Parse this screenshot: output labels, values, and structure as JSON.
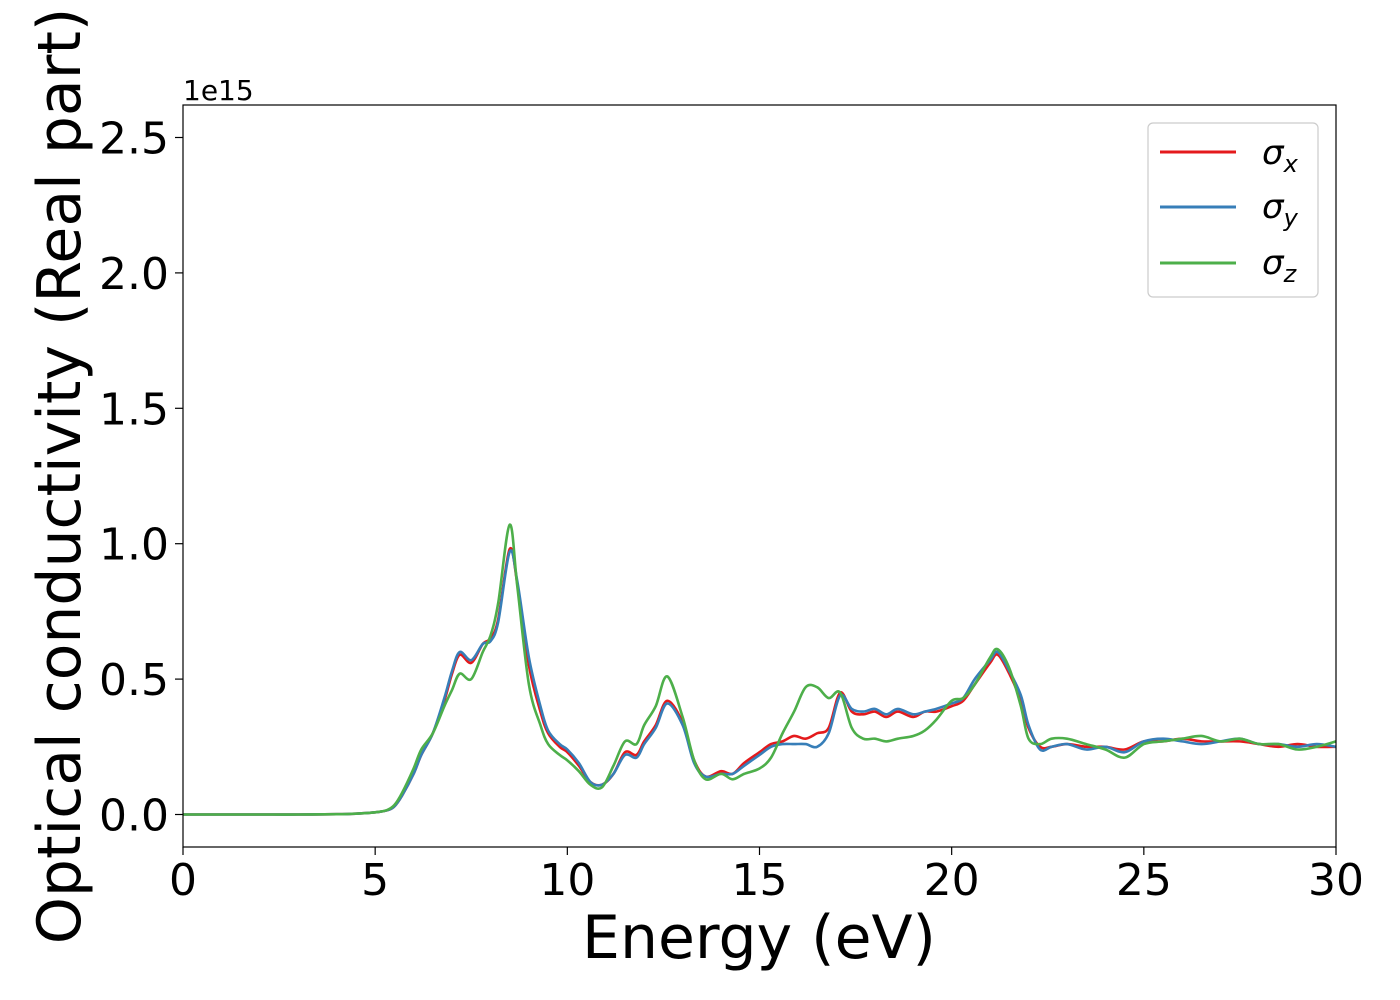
{
  "chart_data": {
    "type": "line",
    "title": "",
    "xlabel": "Energy (eV)",
    "ylabel": "Optical conductivity (Real part)",
    "y_offset_label": "1e15",
    "xlim": [
      0,
      30
    ],
    "ylim": [
      -0.12,
      2.62
    ],
    "xticks": [
      0,
      5,
      10,
      15,
      20,
      25,
      30
    ],
    "yticks": [
      0.0,
      0.5,
      1.0,
      1.5,
      2.0,
      2.5
    ],
    "xtick_labels": [
      "0",
      "5",
      "10",
      "15",
      "20",
      "25",
      "30"
    ],
    "ytick_labels": [
      "0.0",
      "0.5",
      "1.0",
      "1.5",
      "2.0",
      "2.5"
    ],
    "grid": false,
    "legend_position": "top-right",
    "series": [
      {
        "name": "σx",
        "legend_base": "σ",
        "legend_sub": "x",
        "color": "#e41a1c",
        "x": [
          0,
          1,
          2,
          3,
          4,
          4.5,
          5,
          5.3,
          5.5,
          5.7,
          6,
          6.2,
          6.5,
          6.8,
          7,
          7.2,
          7.5,
          7.8,
          8,
          8.2,
          8.5,
          8.7,
          9,
          9.3,
          9.5,
          9.8,
          10,
          10.3,
          10.6,
          10.9,
          11.2,
          11.5,
          11.8,
          12,
          12.3,
          12.6,
          13,
          13.3,
          13.6,
          14,
          14.3,
          14.6,
          15,
          15.3,
          15.6,
          15.9,
          16.2,
          16.5,
          16.8,
          17.1,
          17.4,
          17.7,
          18,
          18.3,
          18.6,
          19,
          19.3,
          19.6,
          20,
          20.3,
          20.6,
          21,
          21.2,
          21.5,
          21.8,
          22,
          22.3,
          22.6,
          23,
          23.5,
          24,
          24.5,
          25,
          25.5,
          26,
          26.5,
          27,
          27.5,
          28,
          28.5,
          29,
          29.5,
          30
        ],
        "y": [
          0,
          0,
          0,
          0,
          0.001,
          0.003,
          0.008,
          0.015,
          0.03,
          0.07,
          0.15,
          0.22,
          0.3,
          0.42,
          0.52,
          0.59,
          0.56,
          0.63,
          0.65,
          0.72,
          0.98,
          0.85,
          0.55,
          0.38,
          0.3,
          0.25,
          0.23,
          0.18,
          0.12,
          0.11,
          0.15,
          0.23,
          0.22,
          0.27,
          0.33,
          0.42,
          0.34,
          0.2,
          0.14,
          0.16,
          0.15,
          0.19,
          0.23,
          0.26,
          0.27,
          0.29,
          0.28,
          0.3,
          0.32,
          0.45,
          0.38,
          0.37,
          0.38,
          0.36,
          0.38,
          0.36,
          0.38,
          0.38,
          0.4,
          0.42,
          0.48,
          0.56,
          0.59,
          0.52,
          0.42,
          0.32,
          0.25,
          0.25,
          0.26,
          0.25,
          0.25,
          0.24,
          0.27,
          0.27,
          0.28,
          0.27,
          0.27,
          0.27,
          0.26,
          0.25,
          0.26,
          0.25,
          0.25
        ]
      },
      {
        "name": "σy",
        "legend_base": "σ",
        "legend_sub": "y",
        "color": "#377eb8",
        "x": [
          0,
          1,
          2,
          3,
          4,
          4.5,
          5,
          5.3,
          5.5,
          5.7,
          6,
          6.2,
          6.5,
          6.8,
          7,
          7.2,
          7.5,
          7.8,
          8,
          8.2,
          8.5,
          8.7,
          9,
          9.3,
          9.5,
          9.8,
          10,
          10.3,
          10.6,
          10.9,
          11.2,
          11.5,
          11.8,
          12,
          12.3,
          12.6,
          13,
          13.3,
          13.6,
          14,
          14.3,
          14.6,
          15,
          15.3,
          15.6,
          15.9,
          16.2,
          16.5,
          16.8,
          17.1,
          17.4,
          17.7,
          18,
          18.3,
          18.6,
          19,
          19.3,
          19.6,
          20,
          20.3,
          20.6,
          21,
          21.2,
          21.5,
          21.8,
          22,
          22.3,
          22.6,
          23,
          23.5,
          24,
          24.5,
          25,
          25.5,
          26,
          26.5,
          27,
          27.5,
          28,
          28.5,
          29,
          29.5,
          30
        ],
        "y": [
          0,
          0,
          0,
          0,
          0.001,
          0.003,
          0.008,
          0.015,
          0.03,
          0.07,
          0.15,
          0.22,
          0.3,
          0.43,
          0.53,
          0.6,
          0.57,
          0.63,
          0.64,
          0.71,
          0.97,
          0.86,
          0.58,
          0.4,
          0.31,
          0.26,
          0.24,
          0.19,
          0.12,
          0.11,
          0.15,
          0.22,
          0.21,
          0.26,
          0.32,
          0.41,
          0.33,
          0.19,
          0.14,
          0.15,
          0.15,
          0.18,
          0.22,
          0.25,
          0.26,
          0.26,
          0.26,
          0.25,
          0.3,
          0.44,
          0.39,
          0.38,
          0.39,
          0.37,
          0.39,
          0.37,
          0.38,
          0.39,
          0.41,
          0.43,
          0.5,
          0.57,
          0.6,
          0.53,
          0.44,
          0.33,
          0.24,
          0.25,
          0.26,
          0.24,
          0.25,
          0.23,
          0.27,
          0.28,
          0.27,
          0.26,
          0.27,
          0.28,
          0.26,
          0.26,
          0.25,
          0.26,
          0.25
        ]
      },
      {
        "name": "σz",
        "legend_base": "σ",
        "legend_sub": "z",
        "color": "#4daf4a",
        "x": [
          0,
          1,
          2,
          3,
          4,
          4.5,
          5,
          5.3,
          5.5,
          5.7,
          6,
          6.2,
          6.5,
          6.8,
          7,
          7.2,
          7.5,
          7.8,
          8,
          8.2,
          8.5,
          8.7,
          9,
          9.3,
          9.5,
          9.8,
          10,
          10.3,
          10.6,
          10.9,
          11.2,
          11.5,
          11.8,
          12,
          12.3,
          12.6,
          13,
          13.3,
          13.6,
          14,
          14.3,
          14.6,
          15,
          15.3,
          15.6,
          15.9,
          16.2,
          16.5,
          16.8,
          17.1,
          17.4,
          17.7,
          18,
          18.3,
          18.6,
          19,
          19.3,
          19.6,
          20,
          20.3,
          20.6,
          21,
          21.2,
          21.5,
          21.8,
          22,
          22.3,
          22.6,
          23,
          23.5,
          24,
          24.5,
          25,
          25.5,
          26,
          26.5,
          27,
          27.5,
          28,
          28.5,
          29,
          29.5,
          30
        ],
        "y": [
          0,
          0,
          0,
          0,
          0.001,
          0.003,
          0.008,
          0.016,
          0.035,
          0.08,
          0.17,
          0.24,
          0.3,
          0.4,
          0.46,
          0.52,
          0.5,
          0.6,
          0.66,
          0.78,
          1.07,
          0.84,
          0.48,
          0.33,
          0.26,
          0.22,
          0.2,
          0.16,
          0.11,
          0.1,
          0.18,
          0.27,
          0.26,
          0.33,
          0.4,
          0.51,
          0.36,
          0.2,
          0.13,
          0.15,
          0.13,
          0.15,
          0.17,
          0.21,
          0.3,
          0.38,
          0.47,
          0.47,
          0.43,
          0.45,
          0.32,
          0.28,
          0.28,
          0.27,
          0.28,
          0.29,
          0.31,
          0.35,
          0.42,
          0.43,
          0.48,
          0.58,
          0.61,
          0.54,
          0.4,
          0.28,
          0.26,
          0.28,
          0.28,
          0.26,
          0.24,
          0.21,
          0.26,
          0.27,
          0.28,
          0.29,
          0.27,
          0.28,
          0.26,
          0.26,
          0.24,
          0.25,
          0.27
        ]
      }
    ]
  }
}
